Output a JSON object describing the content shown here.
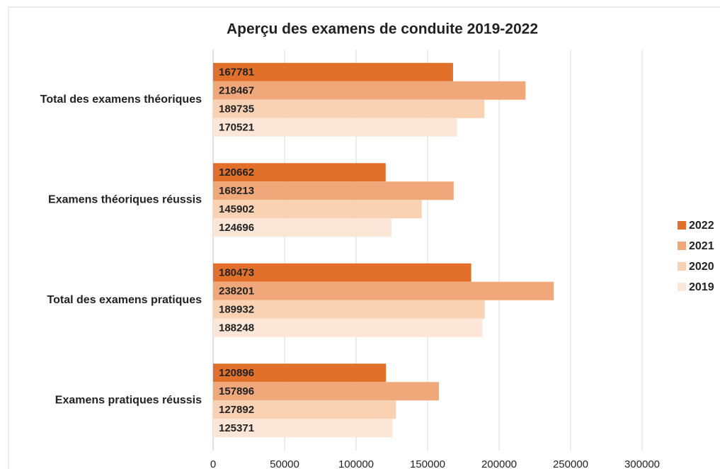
{
  "chart_data": {
    "type": "barh",
    "title": "Aperçu des examens de conduite 2019-2022",
    "categories": [
      "Total des examens théoriques",
      "Examens théoriques réussis",
      "Total des examens pratiques",
      "Examens pratiques réussis"
    ],
    "series": [
      {
        "name": "2022",
        "color": "#e0702a",
        "values": [
          167781,
          120662,
          180473,
          120896
        ]
      },
      {
        "name": "2021",
        "color": "#f0a77a",
        "values": [
          218467,
          168213,
          238201,
          157896
        ]
      },
      {
        "name": "2020",
        "color": "#f8d2b2",
        "values": [
          189735,
          145902,
          189932,
          127892
        ]
      },
      {
        "name": "2019",
        "color": "#fce6d8",
        "values": [
          170521,
          124696,
          188248,
          125371
        ]
      }
    ],
    "xlim": [
      0,
      300000
    ],
    "xticks": [
      0,
      50000,
      100000,
      150000,
      200000,
      250000,
      300000
    ],
    "grid": true,
    "legend": "right"
  }
}
